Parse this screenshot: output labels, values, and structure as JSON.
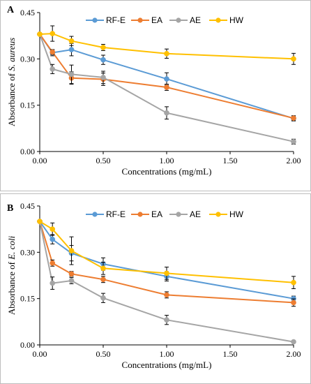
{
  "chart_data": [
    {
      "type": "line",
      "panel_label": "A",
      "ylabel_prefix": "Absorbance  of ",
      "ylabel_italic": "S. aureus",
      "xlabel": "Concentrations (mg/mL)",
      "x": [
        0.0,
        0.1,
        0.25,
        0.5,
        1.0,
        2.0
      ],
      "x_ticks": [
        "0.00",
        "0.50",
        "1.00",
        "1.50",
        "2.00"
      ],
      "xlim": [
        0,
        2
      ],
      "y_ticks": [
        "0.00",
        "0.15",
        "0.30",
        "0.45"
      ],
      "ylim": [
        0,
        0.45
      ],
      "legend": "top",
      "series": [
        {
          "name": "RF-E",
          "color": "#5B9BD5",
          "values": [
            0.38,
            0.32,
            0.33,
            0.297,
            0.235,
            0.107
          ],
          "errors": [
            0,
            0.01,
            0.02,
            0.015,
            0.02,
            0.008
          ]
        },
        {
          "name": "EA",
          "color": "#ED7D31",
          "values": [
            0.38,
            0.322,
            0.238,
            0.234,
            0.208,
            0.108
          ],
          "errors": [
            0,
            0.008,
            0.02,
            0.02,
            0.01,
            0.008
          ]
        },
        {
          "name": "AE",
          "color": "#A5A5A5",
          "values": [
            0.38,
            0.267,
            0.25,
            0.24,
            0.125,
            0.032
          ],
          "errors": [
            0,
            0.015,
            0.03,
            0.02,
            0.02,
            0.008
          ]
        },
        {
          "name": "HW",
          "color": "#FFC000",
          "values": [
            0.38,
            0.382,
            0.358,
            0.337,
            0.317,
            0.3
          ],
          "errors": [
            0,
            0.025,
            0.015,
            0.01,
            0.015,
            0.018
          ]
        }
      ]
    },
    {
      "type": "line",
      "panel_label": "B",
      "ylabel_prefix": "Absorbance of ",
      "ylabel_italic": "E. coli",
      "xlabel": "Concentrations (mg/mL)",
      "x": [
        0.0,
        0.1,
        0.25,
        0.5,
        1.0,
        2.0
      ],
      "x_ticks": [
        "0.00",
        "0.50",
        "1.00",
        "1.50",
        "2.00"
      ],
      "xlim": [
        0,
        2
      ],
      "y_ticks": [
        "0.00",
        "0.15",
        "0.30",
        "0.45"
      ],
      "ylim": [
        0,
        0.45
      ],
      "legend": "top",
      "series": [
        {
          "name": "RF-E",
          "color": "#5B9BD5",
          "values": [
            0.4,
            0.342,
            0.297,
            0.262,
            0.222,
            0.15
          ],
          "errors": [
            0,
            0.015,
            0.025,
            0.02,
            0.015,
            0.008
          ]
        },
        {
          "name": "EA",
          "color": "#ED7D31",
          "values": [
            0.4,
            0.265,
            0.23,
            0.212,
            0.162,
            0.137
          ],
          "errors": [
            0,
            0.01,
            0.008,
            0.01,
            0.01,
            0.012
          ]
        },
        {
          "name": "AE",
          "color": "#A5A5A5",
          "values": [
            0.4,
            0.2,
            0.208,
            0.152,
            0.081,
            0.01
          ],
          "errors": [
            0,
            0.02,
            0.01,
            0.015,
            0.015,
            0.004
          ]
        },
        {
          "name": "HW",
          "color": "#FFC000",
          "values": [
            0.4,
            0.375,
            0.305,
            0.248,
            0.232,
            0.202
          ],
          "errors": [
            0,
            0.02,
            0.045,
            0.02,
            0.02,
            0.02
          ]
        }
      ]
    }
  ]
}
